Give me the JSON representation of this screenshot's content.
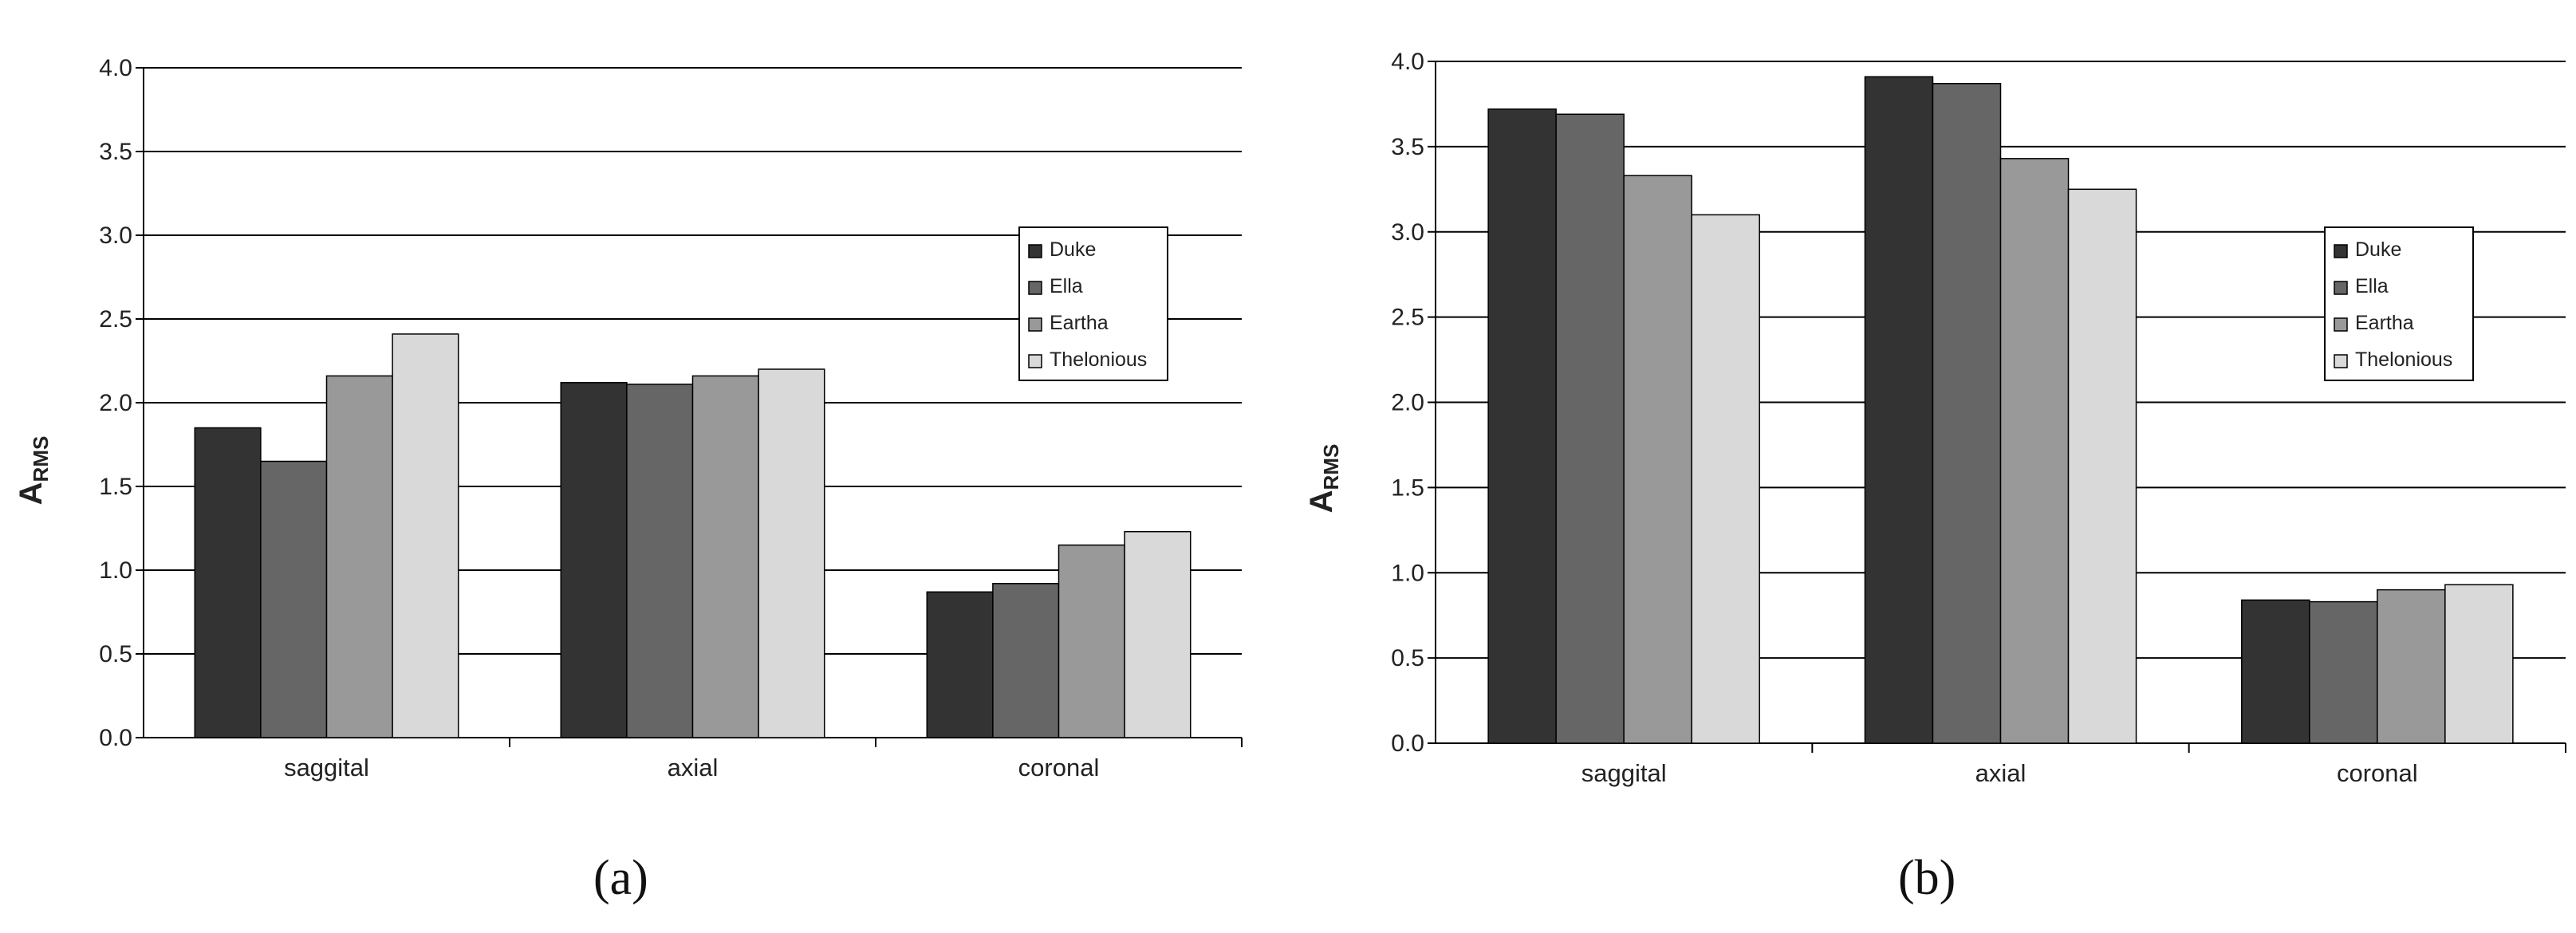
{
  "chart_data": [
    {
      "type": "bar",
      "panel_label": "(a)",
      "ylabel": "A",
      "ylabel_sub": "RMS",
      "xlabel": "",
      "title": "",
      "ylim": [
        0,
        4.0
      ],
      "yticks": [
        "0.0",
        "0.5",
        "1.0",
        "1.5",
        "2.0",
        "2.5",
        "3.0",
        "3.5",
        "4.0"
      ],
      "grid": true,
      "legend_position": "right",
      "categories": [
        "saggital",
        "axial",
        "coronal"
      ],
      "series": [
        {
          "name": "Duke",
          "color": "#333333",
          "values": [
            1.85,
            2.12,
            0.87
          ]
        },
        {
          "name": "Ella",
          "color": "#666666",
          "values": [
            1.65,
            2.11,
            0.92
          ]
        },
        {
          "name": "Eartha",
          "color": "#999999",
          "values": [
            2.16,
            2.16,
            1.15
          ]
        },
        {
          "name": "Thelonious",
          "color": "#d9d9d9",
          "values": [
            2.41,
            2.2,
            1.23
          ]
        }
      ]
    },
    {
      "type": "bar",
      "panel_label": "(b)",
      "ylabel": "A",
      "ylabel_sub": "RMS",
      "xlabel": "",
      "title": "",
      "ylim": [
        0,
        4.0
      ],
      "yticks": [
        "0.0",
        "0.5",
        "1.0",
        "1.5",
        "2.0",
        "2.5",
        "3.0",
        "3.5",
        "4.0"
      ],
      "grid": true,
      "legend_position": "right",
      "categories": [
        "saggital",
        "axial",
        "coronal"
      ],
      "series": [
        {
          "name": "Duke",
          "color": "#333333",
          "values": [
            3.72,
            3.91,
            0.84
          ]
        },
        {
          "name": "Ella",
          "color": "#666666",
          "values": [
            3.69,
            3.87,
            0.83
          ]
        },
        {
          "name": "Eartha",
          "color": "#999999",
          "values": [
            3.33,
            3.43,
            0.9
          ]
        },
        {
          "name": "Thelonious",
          "color": "#d9d9d9",
          "values": [
            3.1,
            3.25,
            0.93
          ]
        }
      ]
    }
  ]
}
